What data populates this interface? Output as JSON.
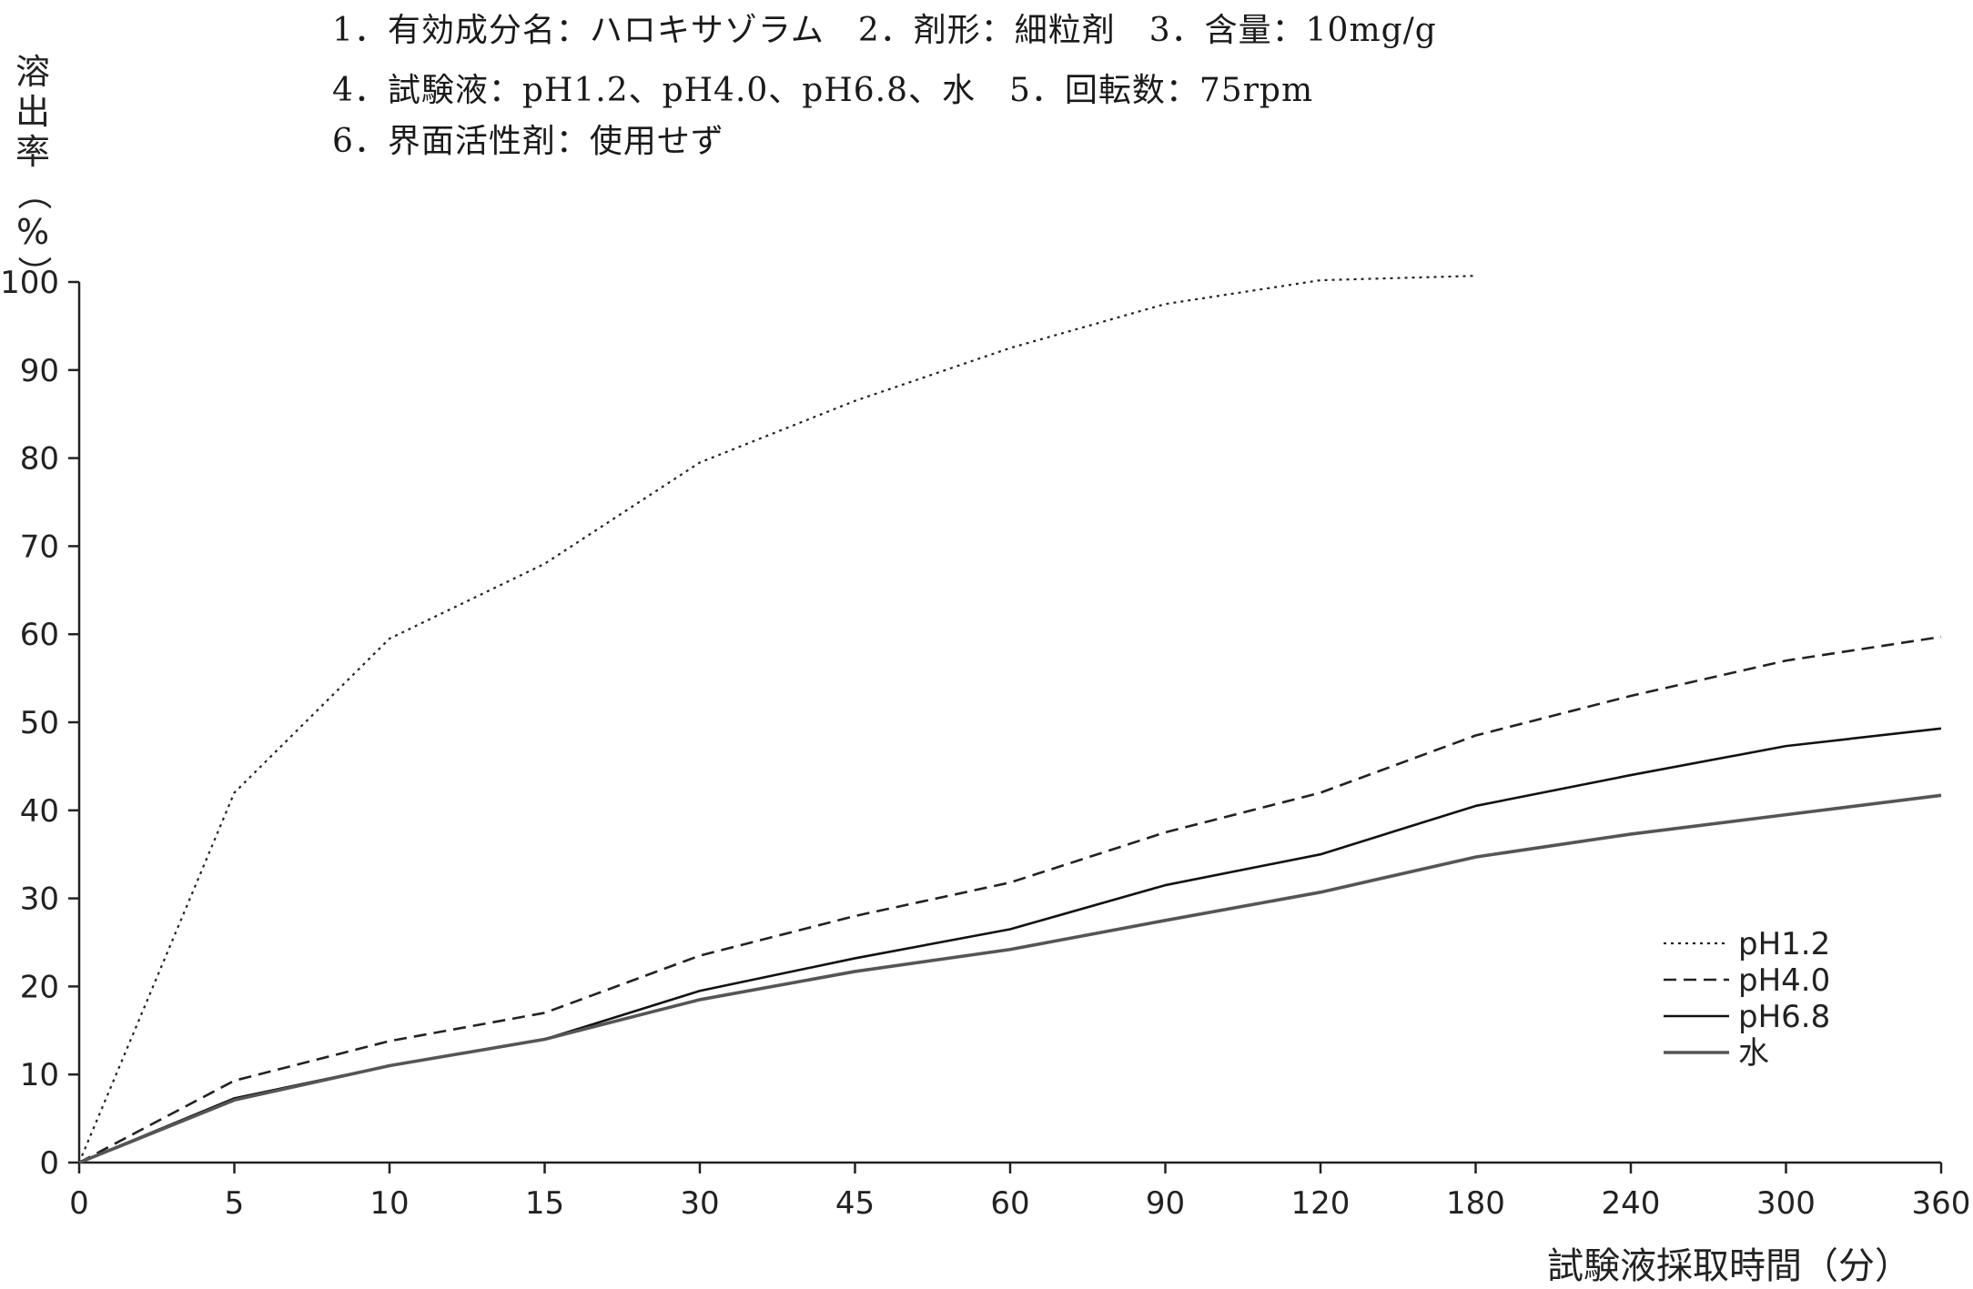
{
  "header": {
    "line1": "1．有効成分名：ハロキサゾラム　2．剤形：細粒剤　3．含量：10mg/g",
    "line2": "4．試験液：pH1.2、pH4.0、pH6.8、水　5．回転数：75rpm",
    "line3": "6．界面活性剤：使用せず"
  },
  "chart_data": {
    "type": "line",
    "ylabel": "溶出率（%）",
    "xlabel": "試験液採取時間（分）",
    "categories": [
      "0",
      "5",
      "10",
      "15",
      "30",
      "45",
      "60",
      "90",
      "120",
      "180",
      "240",
      "300",
      "360"
    ],
    "yticks": [
      "0",
      "10",
      "20",
      "30",
      "40",
      "50",
      "60",
      "70",
      "80",
      "90",
      "100"
    ],
    "ylim": [
      0,
      100
    ],
    "grid": false,
    "legend_position": "bottom-right",
    "series": [
      {
        "name": "pH1.2",
        "style": "dotted",
        "color": "#222222",
        "values": [
          0,
          42,
          59.5,
          68,
          79.5,
          86.5,
          92.5,
          97.5,
          100.2,
          100.7,
          null,
          null,
          null
        ]
      },
      {
        "name": "pH4.0",
        "style": "dashed",
        "color": "#222222",
        "values": [
          0,
          9.3,
          13.8,
          17,
          23.5,
          28,
          31.8,
          37.5,
          42,
          48.5,
          53,
          57,
          59.7
        ]
      },
      {
        "name": "pH6.8",
        "style": "solid",
        "color": "#111111",
        "values": [
          0,
          7.3,
          11,
          14,
          19.5,
          23.2,
          26.5,
          31.5,
          35,
          40.5,
          44,
          47.3,
          49.3
        ]
      },
      {
        "name": "水",
        "style": "solid-thick",
        "color": "#555555",
        "values": [
          0,
          7.1,
          11,
          14,
          18.5,
          21.7,
          24.2,
          27.5,
          30.7,
          34.7,
          37.3,
          39.5,
          41.7
        ]
      }
    ]
  }
}
